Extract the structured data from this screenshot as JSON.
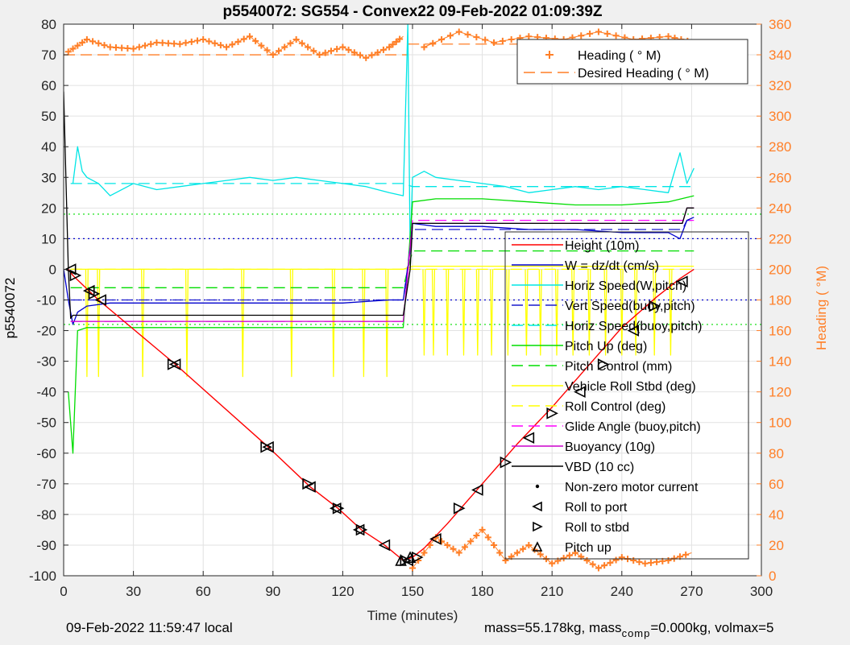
{
  "chart_data": {
    "type": "line",
    "title": "p5540072: SG554 - Convex22 09-Feb-2022 01:09:39Z",
    "xlabel": "Time (minutes)",
    "ylabel": "p5540072",
    "y2label": "Heading (  °M)",
    "xlim": [
      0,
      300
    ],
    "ylim": [
      -100,
      80
    ],
    "y2lim": [
      0,
      360
    ],
    "xticks": [
      "0",
      "30",
      "60",
      "90",
      "120",
      "150",
      "180",
      "210",
      "240",
      "270",
      "300"
    ],
    "yticks": [
      "-100",
      "-90",
      "-80",
      "-70",
      "-60",
      "-50",
      "-40",
      "-30",
      "-20",
      "-10",
      "0",
      "10",
      "20",
      "30",
      "40",
      "50",
      "60",
      "70",
      "80"
    ],
    "y2ticks": [
      "0",
      "20",
      "40",
      "60",
      "80",
      "100",
      "120",
      "140",
      "160",
      "180",
      "200",
      "220",
      "240",
      "260",
      "280",
      "300",
      "320",
      "340",
      "360"
    ],
    "grid": true,
    "colors": {
      "height": "#ff0000",
      "w": "#0000cd",
      "horiz_speed": "#00e5e5",
      "vert_speed": "#1a1acd",
      "pitch": "#00dd00",
      "roll": "#ffff00",
      "glide": "#ff00ff",
      "buoyancy": "#cc00cc",
      "vbd": "#000000",
      "heading": "#ff7f27"
    },
    "legend_main": {
      "placement": "center-right",
      "entries": [
        {
          "label": "Height (10m)",
          "color": "#ff0000",
          "style": "solid"
        },
        {
          "label": "W = dz/dt (cm/s)",
          "color": "#0000cd",
          "style": "solid"
        },
        {
          "label": "Horiz Speed(W,pitch)",
          "color": "#00e5e5",
          "style": "solid"
        },
        {
          "label": "Vert Speed(buoy,pitch)",
          "color": "#1a1acd",
          "style": "dashed"
        },
        {
          "label": "Horiz Speed(buoy,pitch)",
          "color": "#00e5e5",
          "style": "dashed"
        },
        {
          "label": "Pitch Up (deg)",
          "color": "#00dd00",
          "style": "solid"
        },
        {
          "label": "Pitch Control (mm)",
          "color": "#00dd00",
          "style": "dashed"
        },
        {
          "label": "Vehicle Roll Stbd (deg)",
          "color": "#ffff00",
          "style": "solid"
        },
        {
          "label": "Roll Control (deg)",
          "color": "#ffff00",
          "style": "dashed"
        },
        {
          "label": "Glide Angle (buoy,pitch)",
          "color": "#ff00ff",
          "style": "dashed"
        },
        {
          "label": "Buoyancy (10g)",
          "color": "#cc00cc",
          "style": "solid"
        },
        {
          "label": "VBD (10 cc)",
          "color": "#000000",
          "style": "solid"
        },
        {
          "label": "Non-zero motor current",
          "color": "#000000",
          "style": "dot"
        },
        {
          "label": "Roll to port",
          "color": "#000000",
          "style": "tri-left"
        },
        {
          "label": "Roll to stbd",
          "color": "#000000",
          "style": "tri-right"
        },
        {
          "label": "Pitch up",
          "color": "#000000",
          "style": "tri-up"
        }
      ]
    },
    "legend_heading": {
      "placement": "top-right",
      "entries": [
        {
          "label": "Heading (  ° M)",
          "color": "#ff7f27",
          "style": "plus"
        },
        {
          "label": "Desired Heading (   ° M)",
          "color": "#ff7f27",
          "style": "dashed"
        }
      ]
    },
    "series": [
      {
        "name": "Height (10m)",
        "key": "height",
        "x": [
          2,
          4,
          15,
          48,
          88,
          106,
          118,
          128,
          138,
          146,
          150,
          155,
          165,
          180,
          195,
          210,
          225,
          240,
          255,
          265,
          271
        ],
        "y": [
          0,
          -2,
          -10,
          -31,
          -58,
          -71,
          -78,
          -85,
          -90,
          -95,
          -94,
          -91,
          -83,
          -70,
          -57,
          -45,
          -32,
          -19,
          -9,
          -3,
          0
        ]
      },
      {
        "name": "W = dz/dt (cm/s)",
        "key": "w",
        "x": [
          0,
          2,
          4,
          6,
          10,
          20,
          40,
          60,
          80,
          100,
          120,
          140,
          146,
          148,
          150,
          160,
          180,
          200,
          220,
          240,
          260,
          265,
          268,
          271
        ],
        "y": [
          0,
          -10,
          -18,
          -14,
          -12,
          -11,
          -11,
          -11,
          -11,
          -11,
          -11,
          -10,
          -10,
          0,
          15,
          14,
          14,
          13,
          13,
          12,
          12,
          10,
          16,
          17
        ]
      },
      {
        "name": "Horiz Speed(W,pitch)",
        "key": "horiz_speed",
        "x": [
          4,
          6,
          8,
          10,
          15,
          20,
          30,
          40,
          50,
          60,
          70,
          80,
          90,
          100,
          110,
          120,
          130,
          140,
          146,
          148,
          149,
          150,
          155,
          160,
          170,
          180,
          190,
          200,
          210,
          220,
          230,
          240,
          250,
          260,
          265,
          268,
          271
        ],
        "y": [
          28,
          40,
          32,
          30,
          28,
          24,
          28,
          26,
          27,
          28,
          29,
          30,
          29,
          30,
          29,
          28,
          27,
          25,
          24,
          80,
          5,
          30,
          32,
          30,
          29,
          28,
          27,
          25,
          26,
          27,
          26,
          27,
          26,
          25,
          38,
          28,
          33
        ]
      },
      {
        "name": "Vert Speed(buoy,pitch)",
        "key": "vert_speed",
        "x": [
          3,
          10,
          146,
          150,
          266,
          268,
          271
        ],
        "y": [
          -10,
          -10,
          -10,
          13,
          13,
          16,
          16
        ]
      },
      {
        "name": "Horiz Speed(buoy,pitch)",
        "key": "horiz_speed_buoy",
        "x": [
          3,
          146,
          150,
          271
        ],
        "y": [
          28,
          28,
          27,
          27
        ]
      },
      {
        "name": "Pitch Up (deg)",
        "key": "pitch",
        "x": [
          2,
          4,
          6,
          10,
          20,
          40,
          60,
          80,
          100,
          120,
          140,
          146,
          148,
          150,
          160,
          180,
          200,
          220,
          240,
          260,
          271
        ],
        "y": [
          -40,
          -60,
          -20,
          -19,
          -19,
          -19,
          -19,
          -19,
          -19,
          -19,
          -19,
          -19,
          0,
          22,
          23,
          23,
          22,
          21,
          21,
          22,
          24
        ]
      },
      {
        "name": "Pitch Control (mm)",
        "key": "pitch_control",
        "x": [
          3,
          146,
          150,
          271
        ],
        "y": [
          -6,
          -6,
          6,
          6
        ]
      },
      {
        "name": "Vehicle Roll Stbd (deg)",
        "key": "roll",
        "x": [
          3,
          146,
          150,
          271
        ],
        "y": [
          0,
          0,
          1,
          1
        ]
      },
      {
        "name": "Roll Control (deg)",
        "key": "roll_control",
        "x": [
          3,
          271
        ],
        "y": [
          0,
          0
        ]
      },
      {
        "name": "Glide Angle (buoy,pitch)",
        "key": "glide",
        "x": [
          3,
          146,
          150,
          271
        ],
        "y": [
          -17,
          -17,
          16,
          16
        ]
      },
      {
        "name": "Buoyancy (10g)",
        "key": "buoyancy",
        "x": [
          3,
          146,
          150,
          266,
          268,
          271
        ],
        "y": [
          -17,
          -17,
          15,
          15,
          20,
          20
        ]
      },
      {
        "name": "VBD (10 cc)",
        "key": "vbd",
        "x": [
          0,
          2,
          3,
          4,
          146,
          149,
          150,
          266,
          268,
          271
        ],
        "y": [
          58,
          0,
          -16,
          -15,
          -15,
          0,
          15,
          15,
          20,
          20
        ]
      }
    ],
    "reference_lines": [
      {
        "y": 18,
        "color": "#00dd00",
        "style": "dotted"
      },
      {
        "y": 10,
        "color": "#0000cd",
        "style": "dotted"
      },
      {
        "y": -10,
        "color": "#0000cd",
        "style": "dotted"
      },
      {
        "y": -18,
        "color": "#00dd00",
        "style": "dotted"
      }
    ],
    "roll_spikes_x": [
      10,
      15,
      34,
      53,
      77,
      98,
      116,
      129,
      139,
      155,
      159,
      165,
      172,
      178,
      184,
      191,
      199,
      205,
      212,
      219,
      226,
      233,
      240,
      246,
      254,
      261
    ],
    "markers": {
      "roll_to_port": [
        [
          3,
          0
        ],
        [
          11,
          -7
        ],
        [
          16,
          -10
        ],
        [
          48,
          -31
        ],
        [
          88,
          -58
        ],
        [
          106,
          -71
        ],
        [
          117,
          -78
        ],
        [
          127,
          -85
        ],
        [
          138,
          -90
        ],
        [
          148,
          -95
        ],
        [
          160,
          -88
        ],
        [
          178,
          -72
        ],
        [
          200,
          -55
        ],
        [
          222,
          -40
        ],
        [
          245,
          -20
        ],
        [
          266,
          -4
        ]
      ],
      "roll_to_stbd": [
        [
          5,
          -2
        ],
        [
          13,
          -8
        ],
        [
          47,
          -31
        ],
        [
          87,
          -58
        ],
        [
          105,
          -70
        ],
        [
          118,
          -78
        ],
        [
          128,
          -85
        ],
        [
          147,
          -95
        ],
        [
          152,
          -94
        ],
        [
          170,
          -78
        ],
        [
          190,
          -63
        ],
        [
          210,
          -47
        ],
        [
          232,
          -31
        ],
        [
          254,
          -12
        ]
      ],
      "pitch_up": [
        [
          145,
          -95
        ],
        [
          149,
          -94
        ]
      ]
    },
    "heading": {
      "desired": [
        {
          "x": [
            0,
            148
          ],
          "y": 340
        },
        {
          "x": [
            148,
            271
          ],
          "y": 347
        }
      ],
      "segments": [
        {
          "x": [
            2,
            10,
            20,
            30,
            40,
            50,
            60,
            70,
            80,
            90,
            100,
            110,
            120,
            130,
            140,
            146
          ],
          "y": [
            342,
            350,
            345,
            344,
            348,
            347,
            350,
            345,
            352,
            340,
            350,
            340,
            345,
            338,
            345,
            352
          ]
        },
        {
          "x": [
            150,
            160,
            170,
            180,
            190,
            200,
            210,
            220,
            230,
            240,
            250,
            260,
            270
          ],
          "y": [
            5,
            25,
            15,
            30,
            10,
            20,
            8,
            15,
            5,
            12,
            8,
            10,
            15
          ]
        },
        {
          "x": [
            155,
            170,
            185,
            200,
            215,
            230,
            245,
            260,
            271
          ],
          "y": [
            345,
            355,
            348,
            352,
            350,
            355,
            350,
            352,
            348
          ]
        }
      ]
    }
  },
  "footer": {
    "left": "09-Feb-2022 11:59:47 local",
    "right_a": "mass=55.178kg, mass",
    "right_sub": "comp",
    "right_b": "=0.000kg, volmax=5"
  }
}
